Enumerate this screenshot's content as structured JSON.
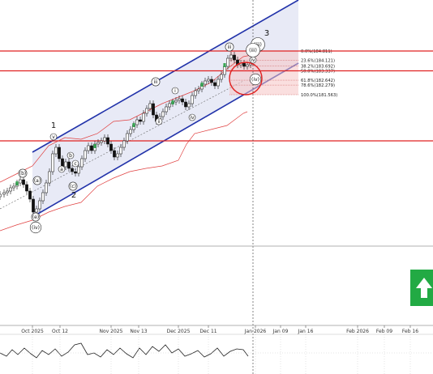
{
  "chart_data": {
    "type": "candlestick",
    "x_ticks": [
      "Oct 2025",
      "Oct 12",
      "Nov 2025",
      "Nov 13",
      "Dec 2025",
      "Dec 11",
      "Jan 2026",
      "Jan 09",
      "Jan 16",
      "Feb 2026",
      "Feb 09",
      "Feb 16"
    ],
    "fib_levels": [
      {
        "label": "0.0%(184.811)",
        "value": 184.811
      },
      {
        "label": "23.6%(184.121)",
        "value": 184.121
      },
      {
        "label": "38.2%(183.692)",
        "value": 183.692
      },
      {
        "label": "50.0%(183.337)",
        "value": 183.337
      },
      {
        "label": "61.8%(182.642)",
        "value": 182.642
      },
      {
        "label": "78.6%(182.279)",
        "value": 182.279
      },
      {
        "label": "100.0%(181.563)",
        "value": 181.563
      }
    ],
    "resistance_levels": [
      184.811,
      183.337
    ],
    "support_levels": [
      178.9
    ],
    "wave_labels": [
      {
        "text": "1",
        "style": "plain"
      },
      {
        "text": "2",
        "style": "plain"
      },
      {
        "text": "3",
        "style": "plain"
      },
      {
        "text": "(b)",
        "style": "circled"
      },
      {
        "text": "(a)",
        "style": "circled"
      },
      {
        "text": "(c)",
        "style": "circled"
      },
      {
        "text": "(e)",
        "style": "circled"
      },
      {
        "text": "(iv)",
        "style": "circled"
      },
      {
        "text": "v",
        "style": "circled"
      },
      {
        "text": "b",
        "style": "circled"
      },
      {
        "text": "a",
        "style": "circled"
      },
      {
        "text": "c",
        "style": "circled"
      },
      {
        "text": "i",
        "style": "circled"
      },
      {
        "text": "ii",
        "style": "circled"
      },
      {
        "text": "iii",
        "style": "circled"
      },
      {
        "text": "iv",
        "style": "circled"
      },
      {
        "text": "iii",
        "style": "circled"
      },
      {
        "text": "iv",
        "style": "circled"
      },
      {
        "text": "(iii)",
        "style": "circled"
      },
      {
        "text": "(iii)",
        "style": "circled"
      },
      {
        "text": "(iv)",
        "style": "circled"
      }
    ],
    "signal": "up-arrow",
    "colors": {
      "channel_fill": "#e4e6f5",
      "channel_line": "#2233aa",
      "level_line": "#e02020",
      "envelope": "#e04040",
      "bull_candle": "#3aa655",
      "signal_green": "#22aa44"
    }
  }
}
